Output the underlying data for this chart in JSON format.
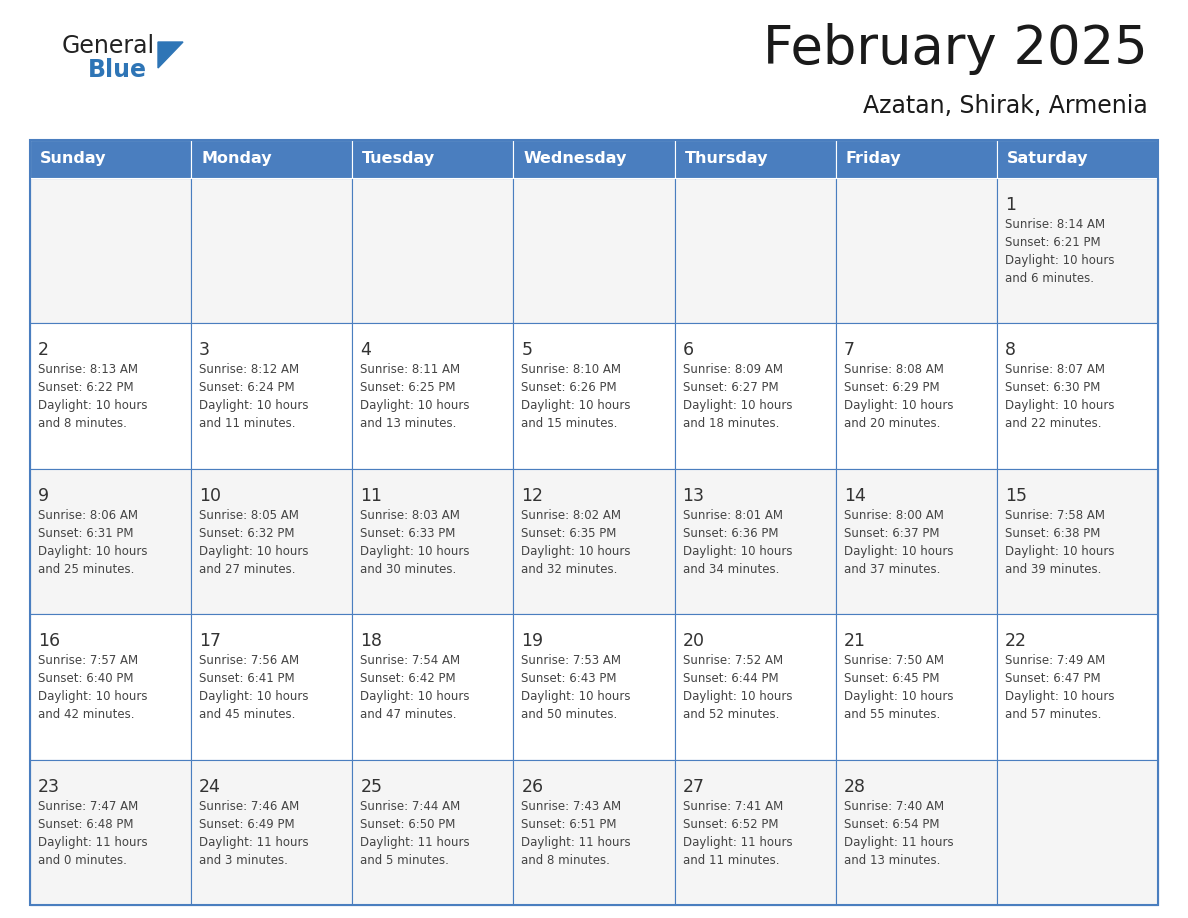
{
  "title": "February 2025",
  "subtitle": "Azatan, Shirak, Armenia",
  "days_of_week": [
    "Sunday",
    "Monday",
    "Tuesday",
    "Wednesday",
    "Thursday",
    "Friday",
    "Saturday"
  ],
  "header_bg": "#4a7ebf",
  "header_text": "#FFFFFF",
  "cell_bg_odd": "#f5f5f5",
  "cell_bg_even": "#FFFFFF",
  "border_color": "#4a7ebf",
  "day_num_color": "#333333",
  "info_text_color": "#444444",
  "title_color": "#1a1a1a",
  "logo_general_color": "#222222",
  "logo_blue_color": "#2E75B6",
  "logo_triangle_color": "#2E75B6",
  "weeks": [
    [
      null,
      null,
      null,
      null,
      null,
      null,
      1
    ],
    [
      2,
      3,
      4,
      5,
      6,
      7,
      8
    ],
    [
      9,
      10,
      11,
      12,
      13,
      14,
      15
    ],
    [
      16,
      17,
      18,
      19,
      20,
      21,
      22
    ],
    [
      23,
      24,
      25,
      26,
      27,
      28,
      null
    ]
  ],
  "day_data": {
    "1": {
      "sunrise": "8:14 AM",
      "sunset": "6:21 PM",
      "daylight_h": "10 hours",
      "daylight_m": "and 6 minutes."
    },
    "2": {
      "sunrise": "8:13 AM",
      "sunset": "6:22 PM",
      "daylight_h": "10 hours",
      "daylight_m": "and 8 minutes."
    },
    "3": {
      "sunrise": "8:12 AM",
      "sunset": "6:24 PM",
      "daylight_h": "10 hours",
      "daylight_m": "and 11 minutes."
    },
    "4": {
      "sunrise": "8:11 AM",
      "sunset": "6:25 PM",
      "daylight_h": "10 hours",
      "daylight_m": "and 13 minutes."
    },
    "5": {
      "sunrise": "8:10 AM",
      "sunset": "6:26 PM",
      "daylight_h": "10 hours",
      "daylight_m": "and 15 minutes."
    },
    "6": {
      "sunrise": "8:09 AM",
      "sunset": "6:27 PM",
      "daylight_h": "10 hours",
      "daylight_m": "and 18 minutes."
    },
    "7": {
      "sunrise": "8:08 AM",
      "sunset": "6:29 PM",
      "daylight_h": "10 hours",
      "daylight_m": "and 20 minutes."
    },
    "8": {
      "sunrise": "8:07 AM",
      "sunset": "6:30 PM",
      "daylight_h": "10 hours",
      "daylight_m": "and 22 minutes."
    },
    "9": {
      "sunrise": "8:06 AM",
      "sunset": "6:31 PM",
      "daylight_h": "10 hours",
      "daylight_m": "and 25 minutes."
    },
    "10": {
      "sunrise": "8:05 AM",
      "sunset": "6:32 PM",
      "daylight_h": "10 hours",
      "daylight_m": "and 27 minutes."
    },
    "11": {
      "sunrise": "8:03 AM",
      "sunset": "6:33 PM",
      "daylight_h": "10 hours",
      "daylight_m": "and 30 minutes."
    },
    "12": {
      "sunrise": "8:02 AM",
      "sunset": "6:35 PM",
      "daylight_h": "10 hours",
      "daylight_m": "and 32 minutes."
    },
    "13": {
      "sunrise": "8:01 AM",
      "sunset": "6:36 PM",
      "daylight_h": "10 hours",
      "daylight_m": "and 34 minutes."
    },
    "14": {
      "sunrise": "8:00 AM",
      "sunset": "6:37 PM",
      "daylight_h": "10 hours",
      "daylight_m": "and 37 minutes."
    },
    "15": {
      "sunrise": "7:58 AM",
      "sunset": "6:38 PM",
      "daylight_h": "10 hours",
      "daylight_m": "and 39 minutes."
    },
    "16": {
      "sunrise": "7:57 AM",
      "sunset": "6:40 PM",
      "daylight_h": "10 hours",
      "daylight_m": "and 42 minutes."
    },
    "17": {
      "sunrise": "7:56 AM",
      "sunset": "6:41 PM",
      "daylight_h": "10 hours",
      "daylight_m": "and 45 minutes."
    },
    "18": {
      "sunrise": "7:54 AM",
      "sunset": "6:42 PM",
      "daylight_h": "10 hours",
      "daylight_m": "and 47 minutes."
    },
    "19": {
      "sunrise": "7:53 AM",
      "sunset": "6:43 PM",
      "daylight_h": "10 hours",
      "daylight_m": "and 50 minutes."
    },
    "20": {
      "sunrise": "7:52 AM",
      "sunset": "6:44 PM",
      "daylight_h": "10 hours",
      "daylight_m": "and 52 minutes."
    },
    "21": {
      "sunrise": "7:50 AM",
      "sunset": "6:45 PM",
      "daylight_h": "10 hours",
      "daylight_m": "and 55 minutes."
    },
    "22": {
      "sunrise": "7:49 AM",
      "sunset": "6:47 PM",
      "daylight_h": "10 hours",
      "daylight_m": "and 57 minutes."
    },
    "23": {
      "sunrise": "7:47 AM",
      "sunset": "6:48 PM",
      "daylight_h": "11 hours",
      "daylight_m": "and 0 minutes."
    },
    "24": {
      "sunrise": "7:46 AM",
      "sunset": "6:49 PM",
      "daylight_h": "11 hours",
      "daylight_m": "and 3 minutes."
    },
    "25": {
      "sunrise": "7:44 AM",
      "sunset": "6:50 PM",
      "daylight_h": "11 hours",
      "daylight_m": "and 5 minutes."
    },
    "26": {
      "sunrise": "7:43 AM",
      "sunset": "6:51 PM",
      "daylight_h": "11 hours",
      "daylight_m": "and 8 minutes."
    },
    "27": {
      "sunrise": "7:41 AM",
      "sunset": "6:52 PM",
      "daylight_h": "11 hours",
      "daylight_m": "and 11 minutes."
    },
    "28": {
      "sunrise": "7:40 AM",
      "sunset": "6:54 PM",
      "daylight_h": "11 hours",
      "daylight_m": "and 13 minutes."
    }
  }
}
